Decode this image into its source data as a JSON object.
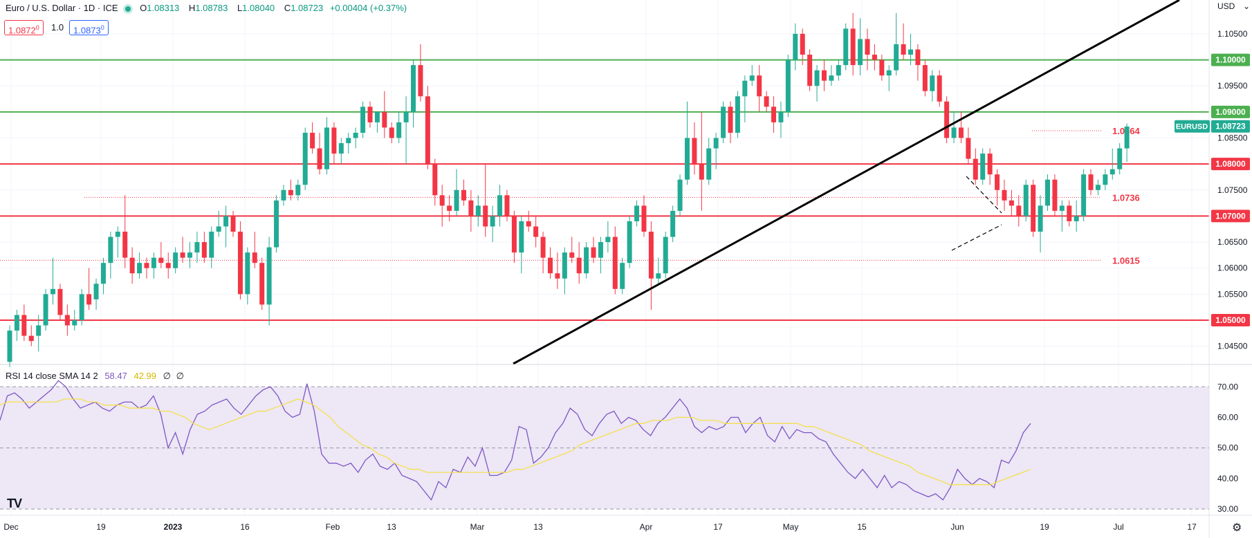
{
  "header": {
    "symbol": "Euro / U.S. Dollar · 1D · ICE",
    "open_label": "O",
    "open": "1.08313",
    "high_label": "H",
    "high": "1.08783",
    "low_label": "L",
    "low": "1.08040",
    "close_label": "C",
    "close": "1.08723",
    "change": "+0.00404 (+0.37%)",
    "sell_price": "1.0872",
    "sell_price_sup": "0",
    "spread": "1.0",
    "buy_price": "1.0873",
    "buy_price_sup": "0"
  },
  "rsi_header": {
    "label": "RSI 14 close SMA 14 2",
    "rsi_value": "58.47",
    "sma_value": "42.99",
    "extra1": "∅",
    "extra2": "∅"
  },
  "currency_label": "USD",
  "logo_text": "TV",
  "colors": {
    "up": "#22ab94",
    "down": "#f23645",
    "support_red": "#f23645",
    "resistance_green": "#4caf50",
    "rsi_line": "#7e57c2",
    "sma_line": "#f5e14b",
    "rsi_band": "#ede7f6"
  },
  "chart_data": {
    "type": "candlestick",
    "title": "Euro / U.S. Dollar · 1D · ICE",
    "y_ticks": [
      "1.04500",
      "1.05000",
      "1.05500",
      "1.06000",
      "1.06500",
      "1.07000",
      "1.07500",
      "1.08000",
      "1.08500",
      "1.09000",
      "1.09500",
      "1.10000",
      "1.10500"
    ],
    "ylim": [
      1.0415,
      1.1115
    ],
    "x_ticks": [
      "Dec",
      "19",
      "2023",
      "16",
      "Feb",
      "13",
      "Mar",
      "13",
      "Apr",
      "17",
      "May",
      "15",
      "Jun",
      "19",
      "Jul",
      "17"
    ],
    "current_price_label": "EURUSD",
    "current_price": "1.08723",
    "horizontal_levels": [
      {
        "value": 1.1,
        "label": "1.10000",
        "color": "green"
      },
      {
        "value": 1.09,
        "label": "1.09000",
        "color": "green"
      },
      {
        "value": 1.08,
        "label": "1.08000",
        "color": "red"
      },
      {
        "value": 1.07,
        "label": "1.07000",
        "color": "red"
      },
      {
        "value": 1.05,
        "label": "1.05000",
        "color": "red"
      }
    ],
    "annotated_levels": [
      {
        "value": 1.0864,
        "label": "1.0864"
      },
      {
        "value": 1.0736,
        "label": "1.0736"
      },
      {
        "value": 1.0615,
        "label": "1.0615"
      }
    ],
    "candles_ohlc": [
      [
        1.042,
        1.049,
        1.041,
        1.048
      ],
      [
        1.048,
        1.052,
        1.046,
        1.051
      ],
      [
        1.051,
        1.053,
        1.046,
        1.047
      ],
      [
        1.047,
        1.049,
        1.045,
        1.046
      ],
      [
        1.047,
        1.051,
        1.044,
        1.049
      ],
      [
        1.049,
        1.056,
        1.048,
        1.055
      ],
      [
        1.055,
        1.062,
        1.053,
        1.056
      ],
      [
        1.056,
        1.057,
        1.05,
        1.051
      ],
      [
        1.051,
        1.053,
        1.047,
        1.049
      ],
      [
        1.049,
        1.052,
        1.048,
        1.05
      ],
      [
        1.05,
        1.056,
        1.049,
        1.055
      ],
      [
        1.055,
        1.06,
        1.052,
        1.053
      ],
      [
        1.054,
        1.058,
        1.052,
        1.057
      ],
      [
        1.057,
        1.062,
        1.055,
        1.061
      ],
      [
        1.061,
        1.067,
        1.058,
        1.066
      ],
      [
        1.066,
        1.068,
        1.062,
        1.067
      ],
      [
        1.067,
        1.074,
        1.06,
        1.062
      ],
      [
        1.062,
        1.064,
        1.057,
        1.059
      ],
      [
        1.059,
        1.063,
        1.058,
        1.061
      ],
      [
        1.061,
        1.062,
        1.058,
        1.06
      ],
      [
        1.06,
        1.063,
        1.058,
        1.062
      ],
      [
        1.062,
        1.065,
        1.06,
        1.061
      ],
      [
        1.061,
        1.063,
        1.058,
        1.06
      ],
      [
        1.06,
        1.064,
        1.059,
        1.063
      ],
      [
        1.063,
        1.066,
        1.061,
        1.062
      ],
      [
        1.062,
        1.065,
        1.06,
        1.063
      ],
      [
        1.063,
        1.067,
        1.061,
        1.065
      ],
      [
        1.065,
        1.067,
        1.061,
        1.062
      ],
      [
        1.062,
        1.068,
        1.06,
        1.067
      ],
      [
        1.067,
        1.071,
        1.066,
        1.068
      ],
      [
        1.068,
        1.072,
        1.064,
        1.07
      ],
      [
        1.07,
        1.071,
        1.066,
        1.067
      ],
      [
        1.067,
        1.069,
        1.054,
        1.055
      ],
      [
        1.055,
        1.064,
        1.053,
        1.063
      ],
      [
        1.063,
        1.067,
        1.06,
        1.061
      ],
      [
        1.061,
        1.062,
        1.052,
        1.053
      ],
      [
        1.053,
        1.066,
        1.049,
        1.064
      ],
      [
        1.064,
        1.074,
        1.063,
        1.073
      ],
      [
        1.073,
        1.076,
        1.072,
        1.075
      ],
      [
        1.075,
        1.077,
        1.073,
        1.074
      ],
      [
        1.074,
        1.077,
        1.073,
        1.076
      ],
      [
        1.076,
        1.087,
        1.075,
        1.086
      ],
      [
        1.086,
        1.088,
        1.082,
        1.083
      ],
      [
        1.083,
        1.086,
        1.078,
        1.079
      ],
      [
        1.079,
        1.089,
        1.078,
        1.087
      ],
      [
        1.087,
        1.088,
        1.08,
        1.082
      ],
      [
        1.082,
        1.085,
        1.08,
        1.084
      ],
      [
        1.084,
        1.086,
        1.082,
        1.085
      ],
      [
        1.085,
        1.087,
        1.083,
        1.086
      ],
      [
        1.086,
        1.092,
        1.085,
        1.091
      ],
      [
        1.091,
        1.092,
        1.087,
        1.088
      ],
      [
        1.088,
        1.089,
        1.086,
        1.09
      ],
      [
        1.09,
        1.094,
        1.085,
        1.087
      ],
      [
        1.087,
        1.088,
        1.084,
        1.085
      ],
      [
        1.085,
        1.09,
        1.084,
        1.088
      ],
      [
        1.088,
        1.093,
        1.08,
        1.09
      ],
      [
        1.09,
        1.1,
        1.087,
        1.099
      ],
      [
        1.099,
        1.103,
        1.092,
        1.093
      ],
      [
        1.093,
        1.095,
        1.079,
        1.08
      ],
      [
        1.08,
        1.081,
        1.072,
        1.074
      ],
      [
        1.074,
        1.076,
        1.068,
        1.072
      ],
      [
        1.072,
        1.074,
        1.069,
        1.071
      ],
      [
        1.071,
        1.079,
        1.07,
        1.075
      ],
      [
        1.075,
        1.077,
        1.072,
        1.073
      ],
      [
        1.073,
        1.075,
        1.067,
        1.07
      ],
      [
        1.07,
        1.074,
        1.068,
        1.072
      ],
      [
        1.072,
        1.08,
        1.066,
        1.068
      ],
      [
        1.068,
        1.072,
        1.065,
        1.07
      ],
      [
        1.07,
        1.076,
        1.068,
        1.074
      ],
      [
        1.074,
        1.075,
        1.069,
        1.07
      ],
      [
        1.07,
        1.071,
        1.061,
        1.063
      ],
      [
        1.063,
        1.07,
        1.059,
        1.069
      ],
      [
        1.069,
        1.071,
        1.067,
        1.068
      ],
      [
        1.068,
        1.07,
        1.064,
        1.066
      ],
      [
        1.066,
        1.067,
        1.059,
        1.062
      ],
      [
        1.062,
        1.064,
        1.058,
        1.059
      ],
      [
        1.059,
        1.063,
        1.056,
        1.058
      ],
      [
        1.058,
        1.064,
        1.055,
        1.063
      ],
      [
        1.063,
        1.066,
        1.061,
        1.062
      ],
      [
        1.062,
        1.065,
        1.057,
        1.059
      ],
      [
        1.059,
        1.065,
        1.058,
        1.064
      ],
      [
        1.064,
        1.066,
        1.061,
        1.062
      ],
      [
        1.062,
        1.066,
        1.059,
        1.065
      ],
      [
        1.065,
        1.069,
        1.063,
        1.066
      ],
      [
        1.066,
        1.068,
        1.055,
        1.056
      ],
      [
        1.056,
        1.062,
        1.055,
        1.061
      ],
      [
        1.061,
        1.07,
        1.06,
        1.069
      ],
      [
        1.069,
        1.073,
        1.068,
        1.072
      ],
      [
        1.072,
        1.074,
        1.066,
        1.067
      ],
      [
        1.067,
        1.069,
        1.052,
        1.058
      ],
      [
        1.058,
        1.062,
        1.057,
        1.059
      ],
      [
        1.059,
        1.067,
        1.058,
        1.066
      ],
      [
        1.066,
        1.072,
        1.065,
        1.071
      ],
      [
        1.071,
        1.078,
        1.07,
        1.077
      ],
      [
        1.077,
        1.092,
        1.076,
        1.085
      ],
      [
        1.085,
        1.088,
        1.078,
        1.08
      ],
      [
        1.08,
        1.09,
        1.071,
        1.077
      ],
      [
        1.077,
        1.085,
        1.076,
        1.083
      ],
      [
        1.083,
        1.086,
        1.079,
        1.085
      ],
      [
        1.085,
        1.092,
        1.084,
        1.091
      ],
      [
        1.091,
        1.092,
        1.084,
        1.086
      ],
      [
        1.086,
        1.094,
        1.085,
        1.093
      ],
      [
        1.093,
        1.097,
        1.088,
        1.096
      ],
      [
        1.096,
        1.099,
        1.095,
        1.097
      ],
      [
        1.097,
        1.099,
        1.09,
        1.093
      ],
      [
        1.093,
        1.094,
        1.09,
        1.091
      ],
      [
        1.091,
        1.093,
        1.086,
        1.088
      ],
      [
        1.088,
        1.092,
        1.085,
        1.09
      ],
      [
        1.09,
        1.101,
        1.089,
        1.1
      ],
      [
        1.1,
        1.107,
        1.098,
        1.105
      ],
      [
        1.105,
        1.106,
        1.099,
        1.101
      ],
      [
        1.101,
        1.102,
        1.094,
        1.095
      ],
      [
        1.095,
        1.099,
        1.092,
        1.098
      ],
      [
        1.098,
        1.1,
        1.094,
        1.096
      ],
      [
        1.096,
        1.099,
        1.095,
        1.097
      ],
      [
        1.097,
        1.1,
        1.096,
        1.099
      ],
      [
        1.099,
        1.107,
        1.098,
        1.106
      ],
      [
        1.106,
        1.109,
        1.097,
        1.099
      ],
      [
        1.099,
        1.108,
        1.097,
        1.104
      ],
      [
        1.104,
        1.106,
        1.098,
        1.101
      ],
      [
        1.101,
        1.103,
        1.098,
        1.1
      ],
      [
        1.1,
        1.101,
        1.096,
        1.097
      ],
      [
        1.097,
        1.099,
        1.094,
        1.098
      ],
      [
        1.098,
        1.109,
        1.097,
        1.103
      ],
      [
        1.103,
        1.107,
        1.1,
        1.101
      ],
      [
        1.101,
        1.105,
        1.099,
        1.102
      ],
      [
        1.102,
        1.103,
        1.096,
        1.099
      ],
      [
        1.099,
        1.1,
        1.093,
        1.094
      ],
      [
        1.094,
        1.098,
        1.092,
        1.097
      ],
      [
        1.097,
        1.098,
        1.091,
        1.092
      ],
      [
        1.092,
        1.093,
        1.084,
        1.085
      ],
      [
        1.085,
        1.09,
        1.084,
        1.087
      ],
      [
        1.087,
        1.09,
        1.084,
        1.085
      ],
      [
        1.085,
        1.087,
        1.08,
        1.081
      ],
      [
        1.081,
        1.083,
        1.076,
        1.077
      ],
      [
        1.077,
        1.083,
        1.076,
        1.082
      ],
      [
        1.082,
        1.083,
        1.076,
        1.078
      ],
      [
        1.078,
        1.079,
        1.072,
        1.075
      ],
      [
        1.075,
        1.077,
        1.071,
        1.073
      ],
      [
        1.073,
        1.075,
        1.07,
        1.072
      ],
      [
        1.072,
        1.074,
        1.068,
        1.07
      ],
      [
        1.07,
        1.077,
        1.069,
        1.076
      ],
      [
        1.076,
        1.077,
        1.066,
        1.067
      ],
      [
        1.067,
        1.074,
        1.063,
        1.072
      ],
      [
        1.072,
        1.078,
        1.071,
        1.077
      ],
      [
        1.077,
        1.078,
        1.07,
        1.071
      ],
      [
        1.071,
        1.073,
        1.067,
        1.072
      ],
      [
        1.072,
        1.073,
        1.068,
        1.069
      ],
      [
        1.069,
        1.073,
        1.067,
        1.07
      ],
      [
        1.07,
        1.079,
        1.069,
        1.078
      ],
      [
        1.078,
        1.079,
        1.074,
        1.075
      ],
      [
        1.075,
        1.077,
        1.074,
        1.076
      ],
      [
        1.076,
        1.079,
        1.075,
        1.078
      ],
      [
        1.078,
        1.083,
        1.077,
        1.079
      ],
      [
        1.079,
        1.084,
        1.078,
        1.083
      ],
      [
        1.083,
        1.0878,
        1.0804,
        1.0872
      ]
    ],
    "rsi": {
      "label": "RSI 14 close SMA 14 2",
      "levels": [
        "70.00",
        "60.00",
        "50.00",
        "40.00",
        "30.00"
      ],
      "ylim": [
        28,
        73
      ],
      "upper_band": 70,
      "middle": 50,
      "lower_band": 30,
      "rsi_values": [
        59,
        67,
        68,
        66,
        63,
        65,
        67,
        69,
        72,
        70,
        66,
        63,
        64,
        65,
        63,
        62,
        64,
        65,
        65,
        63,
        64,
        67,
        61,
        50,
        55,
        48,
        56,
        61,
        62,
        64,
        65,
        66,
        63,
        61,
        64,
        67,
        69,
        70,
        67,
        62,
        60,
        61,
        71,
        62,
        48,
        45,
        45,
        44,
        45,
        42,
        46,
        48,
        44,
        43,
        45,
        41,
        40,
        39,
        36,
        33,
        39,
        37,
        43,
        42,
        47,
        44,
        50,
        41,
        41,
        42,
        46,
        57,
        56,
        45,
        47,
        50,
        55,
        58,
        63,
        61,
        56,
        54,
        58,
        61,
        62,
        58,
        60,
        59,
        56,
        54,
        58,
        60,
        63,
        66,
        63,
        57,
        55,
        57,
        56,
        57,
        60,
        60,
        55,
        58,
        60,
        54,
        52,
        57,
        53,
        56,
        55,
        55,
        53,
        52,
        48,
        45,
        42,
        40,
        43,
        40,
        37,
        41,
        37,
        39,
        38,
        36,
        35,
        34,
        35,
        33,
        37,
        43,
        40,
        38,
        40,
        39,
        37,
        46,
        45,
        49,
        55,
        58
      ],
      "sma_values": [
        64,
        65,
        65,
        65,
        65,
        65,
        65,
        65,
        66,
        66,
        66,
        65,
        65,
        64,
        64,
        64,
        63,
        63,
        63,
        63,
        62,
        62,
        61,
        60,
        58,
        57,
        56,
        57,
        58,
        59,
        60,
        61,
        62,
        62,
        63,
        64,
        65,
        66,
        65,
        64,
        62,
        60,
        57,
        55,
        53,
        51,
        50,
        48,
        47,
        45,
        44,
        43,
        43,
        42,
        42,
        42,
        42,
        42,
        42,
        42,
        42,
        42,
        42,
        42,
        43,
        43,
        44,
        45,
        46,
        47,
        48,
        49,
        51,
        52,
        53,
        54,
        55,
        56,
        57,
        58,
        58,
        59,
        59,
        59,
        60,
        60,
        60,
        59,
        59,
        59,
        58,
        58,
        58,
        58,
        58,
        58,
        58,
        58,
        58,
        58,
        57,
        57,
        56,
        55,
        54,
        53,
        52,
        51,
        49,
        48,
        47,
        46,
        45,
        44,
        42,
        41,
        40,
        39,
        38,
        38,
        38,
        38,
        38,
        38,
        39,
        40,
        41,
        42,
        43
      ]
    }
  }
}
